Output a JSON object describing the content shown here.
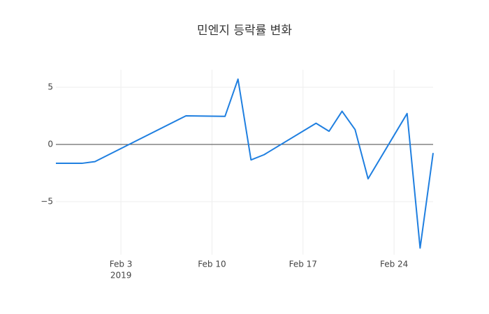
{
  "chart_data": {
    "type": "line",
    "title": "민엔지 등락률 변화",
    "x": [
      "2019-01-29",
      "2019-01-31",
      "2019-02-01",
      "2019-02-08",
      "2019-02-11",
      "2019-02-12",
      "2019-02-13",
      "2019-02-14",
      "2019-02-18",
      "2019-02-19",
      "2019-02-20",
      "2019-02-21",
      "2019-02-22",
      "2019-02-25",
      "2019-02-26",
      "2019-02-27"
    ],
    "series": [
      {
        "name": "등락률",
        "color": "#1f7fe0",
        "values": [
          -1.65,
          -1.65,
          -1.5,
          2.5,
          2.45,
          5.7,
          -1.35,
          -0.9,
          1.85,
          1.15,
          2.9,
          1.3,
          -3.0,
          2.7,
          -9.05,
          -0.75
        ]
      }
    ],
    "xlim": [
      "2019-01-29",
      "2019-02-27"
    ],
    "xticks": [
      {
        "value": "2019-02-03",
        "label": "Feb 3"
      },
      {
        "value": "2019-02-10",
        "label": "Feb 10"
      },
      {
        "value": "2019-02-17",
        "label": "Feb 17"
      },
      {
        "value": "2019-02-24",
        "label": "Feb 24"
      }
    ],
    "x_year_label": "2019",
    "ylim": [
      -9.63,
      6.52
    ],
    "yticks": [
      5,
      0,
      {
        "value": -5,
        "label": "−5"
      }
    ],
    "grid": true,
    "zeroline": true
  }
}
